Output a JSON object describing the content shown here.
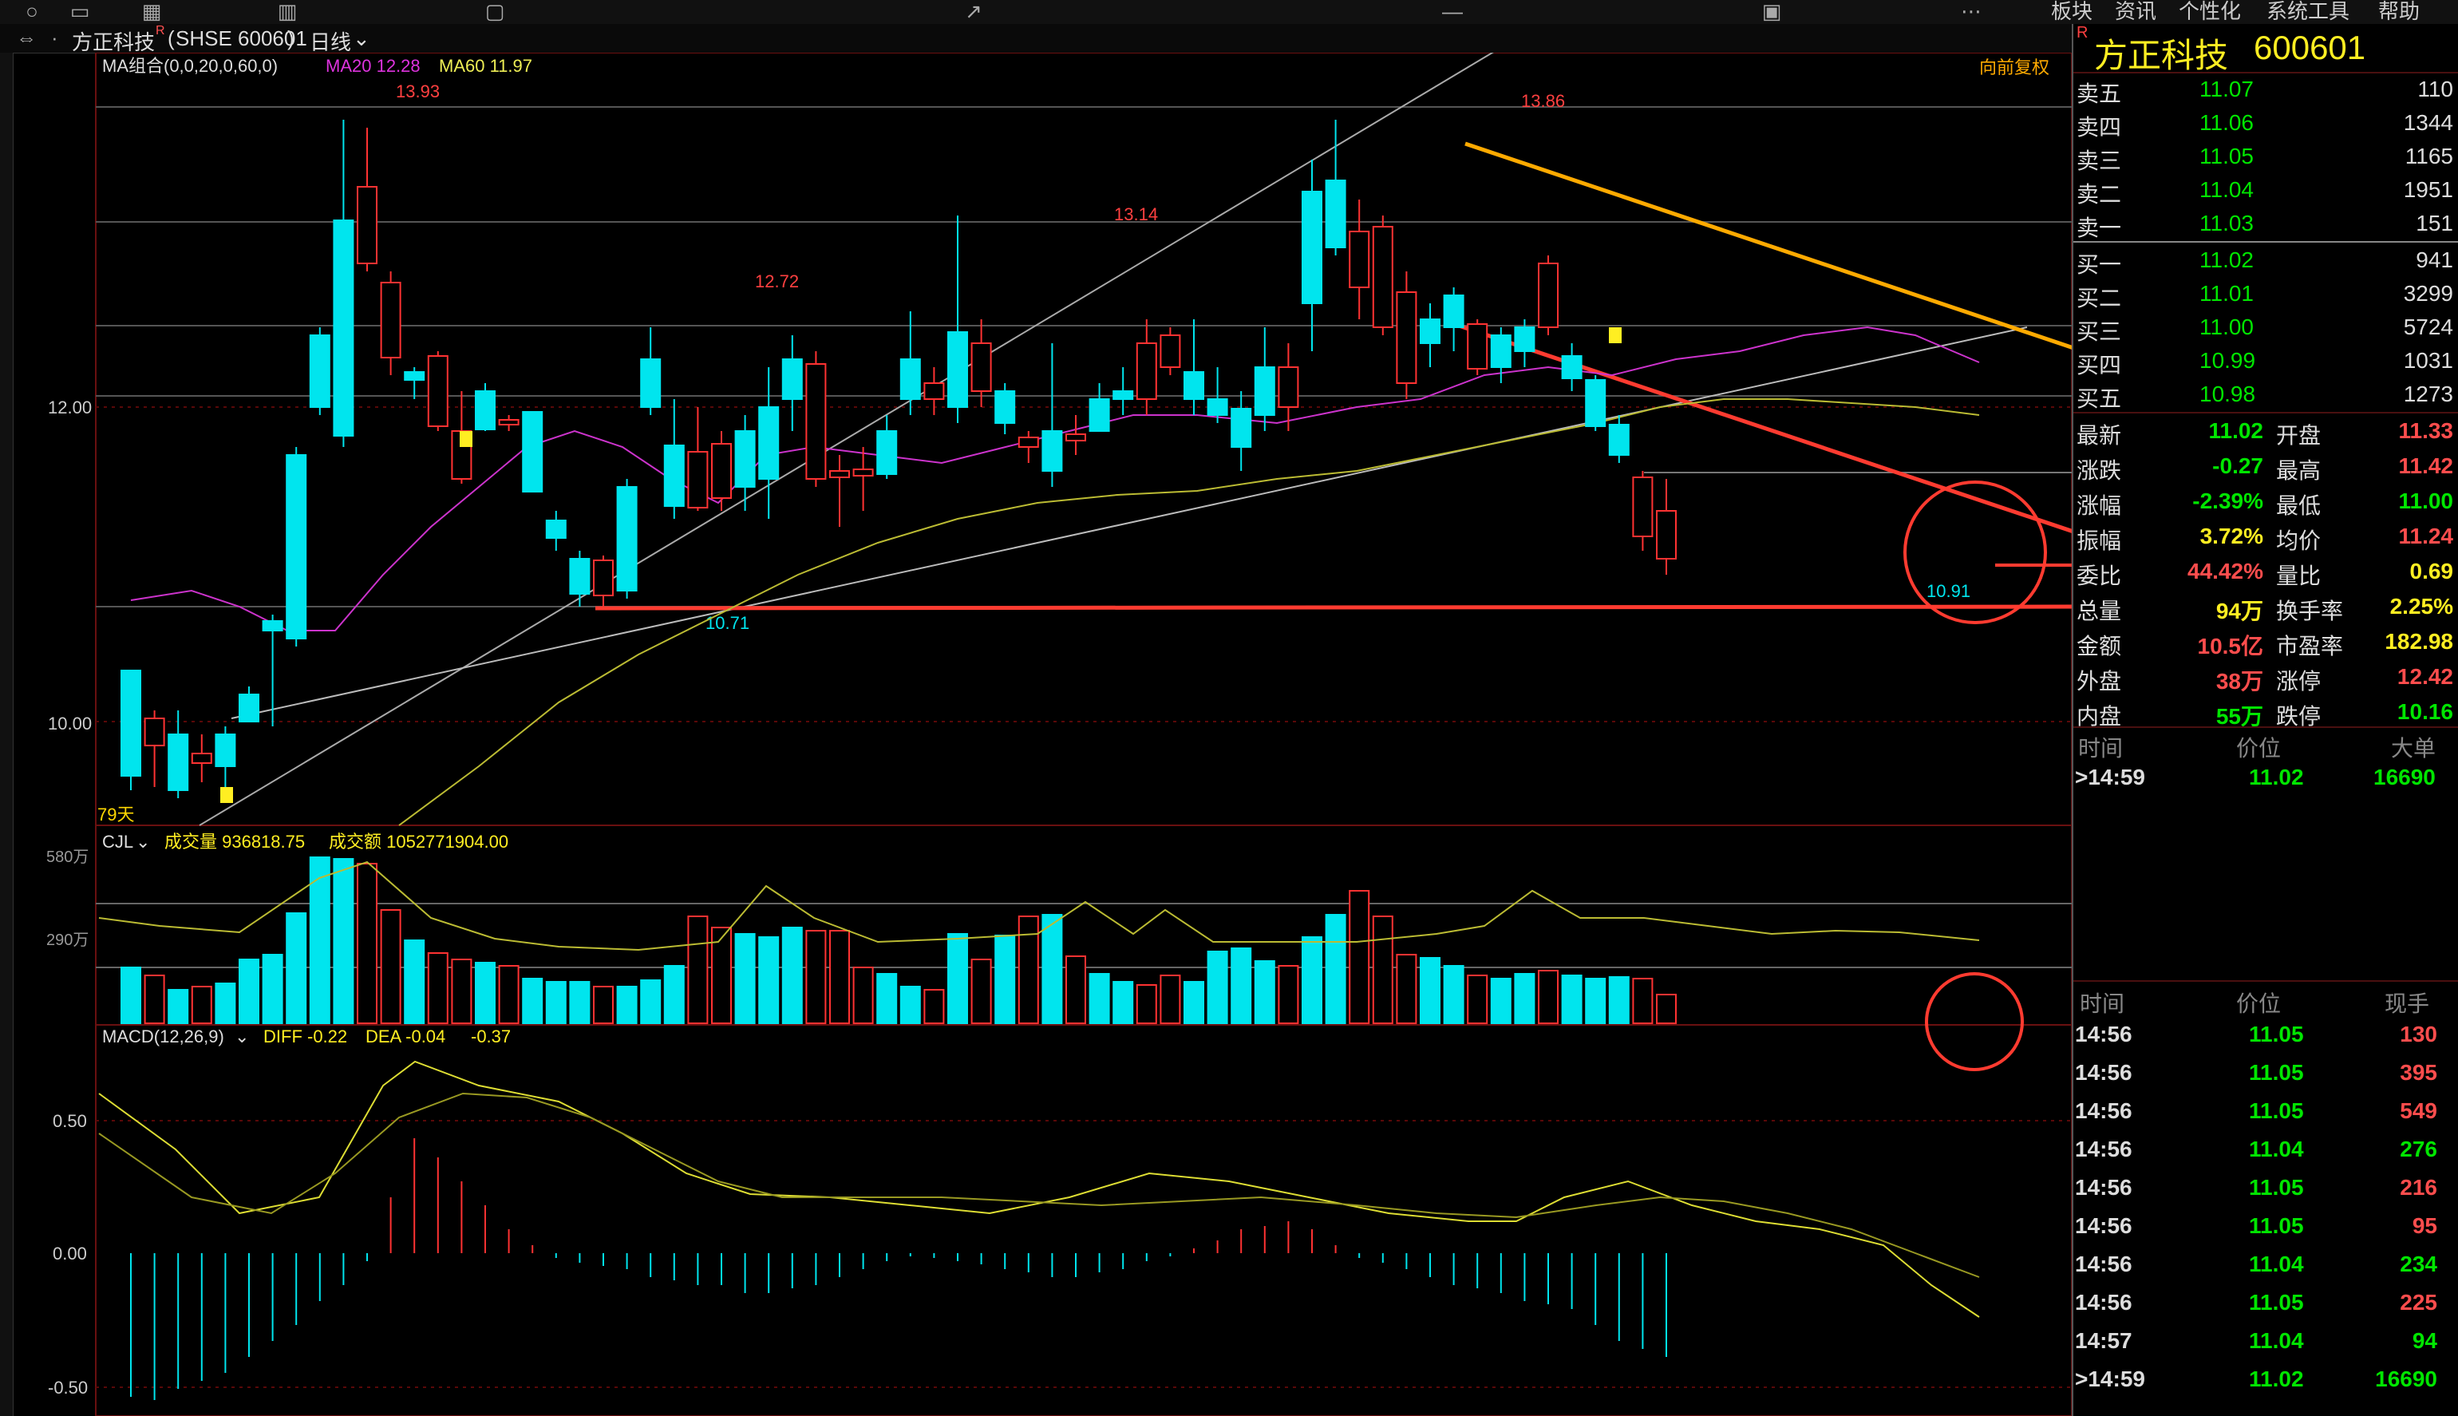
{
  "toolbar": {
    "menus": [
      "板块",
      "资讯",
      "个性化",
      "系统工具",
      "帮助"
    ]
  },
  "title": {
    "stock": "方正科技",
    "code": "SHSE 600601",
    "period": "日线"
  },
  "main_chart": {
    "indicator": "MA组合(0,0,20,0,60,0)",
    "ma20": "MA20 12.28",
    "ma60": "MA60 11.97",
    "adjust": "向前复权",
    "days": "79天",
    "price_labels": [
      "12.00",
      "10.00"
    ],
    "annotations": [
      "13.93",
      "12.72",
      "13.14",
      "13.86",
      "10.71",
      "10.91"
    ]
  },
  "volume_chart": {
    "name": "CJL",
    "vol": "成交量 936818.75",
    "amt": "成交额 1052771904.00",
    "axis": [
      "580万",
      "290万"
    ]
  },
  "macd_chart": {
    "name": "MACD(12,26,9)",
    "diff": "DIFF -0.22",
    "dea": "DEA -0.04",
    "macd": "-0.37",
    "axis": [
      "0.50",
      "0.00",
      "-0.50"
    ]
  },
  "quote": {
    "badge": "R",
    "name": "方正科技",
    "code": "600601",
    "sell": [
      {
        "label": "卖五",
        "price": "11.07",
        "vol": "110"
      },
      {
        "label": "卖四",
        "price": "11.06",
        "vol": "1344"
      },
      {
        "label": "卖三",
        "price": "11.05",
        "vol": "1165"
      },
      {
        "label": "卖二",
        "price": "11.04",
        "vol": "1951"
      },
      {
        "label": "卖一",
        "price": "11.03",
        "vol": "151"
      }
    ],
    "buy": [
      {
        "label": "买一",
        "price": "11.02",
        "vol": "941"
      },
      {
        "label": "买二",
        "price": "11.01",
        "vol": "3299"
      },
      {
        "label": "买三",
        "price": "11.00",
        "vol": "5724"
      },
      {
        "label": "买四",
        "price": "10.99",
        "vol": "1031"
      },
      {
        "label": "买五",
        "price": "10.98",
        "vol": "1273"
      }
    ],
    "stats": [
      {
        "l1": "最新",
        "v1": "11.02",
        "c1": "grn",
        "l2": "开盘",
        "v2": "11.33",
        "c2": "red"
      },
      {
        "l1": "涨跌",
        "v1": "-0.27",
        "c1": "grn",
        "l2": "最高",
        "v2": "11.42",
        "c2": "red"
      },
      {
        "l1": "涨幅",
        "v1": "-2.39%",
        "c1": "grn",
        "l2": "最低",
        "v2": "11.00",
        "c2": "grn"
      },
      {
        "l1": "振幅",
        "v1": "3.72%",
        "c1": "yel",
        "l2": "均价",
        "v2": "11.24",
        "c2": "red"
      },
      {
        "l1": "委比",
        "v1": "44.42%",
        "c1": "red",
        "l2": "量比",
        "v2": "0.69",
        "c2": "yel"
      },
      {
        "l1": "总量",
        "v1": "94万",
        "c1": "yel",
        "l2": "换手率",
        "v2": "2.25%",
        "c2": "yel"
      },
      {
        "l1": "金额",
        "v1": "10.5亿",
        "c1": "red",
        "l2": "市盈率",
        "v2": "182.98",
        "c2": "yel"
      },
      {
        "l1": "外盘",
        "v1": "38万",
        "c1": "red",
        "l2": "涨停",
        "v2": "12.42",
        "c2": "red"
      },
      {
        "l1": "内盘",
        "v1": "55万",
        "c1": "grn",
        "l2": "跌停",
        "v2": "10.16",
        "c2": "grn"
      }
    ],
    "bigorder_headers": [
      "时间",
      "价位",
      "大单"
    ],
    "bigorder": {
      "time": ">14:59",
      "price": "11.02",
      "vol": "16690"
    },
    "ticks_headers": [
      "时间",
      "价位",
      "现手"
    ],
    "ticks": [
      {
        "time": "14:56",
        "price": "11.05",
        "vol": "130",
        "c": "red"
      },
      {
        "time": "14:56",
        "price": "11.05",
        "vol": "395",
        "c": "red"
      },
      {
        "time": "14:56",
        "price": "11.05",
        "vol": "549",
        "c": "red"
      },
      {
        "time": "14:56",
        "price": "11.04",
        "vol": "276",
        "c": "grn"
      },
      {
        "time": "14:56",
        "price": "11.05",
        "vol": "216",
        "c": "red"
      },
      {
        "time": "14:56",
        "price": "11.05",
        "vol": "95",
        "c": "red"
      },
      {
        "time": "14:56",
        "price": "11.04",
        "vol": "234",
        "c": "grn"
      },
      {
        "time": "14:56",
        "price": "11.05",
        "vol": "225",
        "c": "red"
      },
      {
        "time": "14:57",
        "price": "11.04",
        "vol": "94",
        "c": "grn"
      },
      {
        "time": ">14:59",
        "price": "11.02",
        "vol": "16690",
        "c": "grn"
      }
    ]
  },
  "colors": {
    "up": "#ff3232",
    "down": "#00e5ee",
    "ma20": "#cc33cc",
    "ma60": "#cccc33",
    "trend_yellow": "#ffaa00",
    "trend_red": "#ff3b30"
  }
}
